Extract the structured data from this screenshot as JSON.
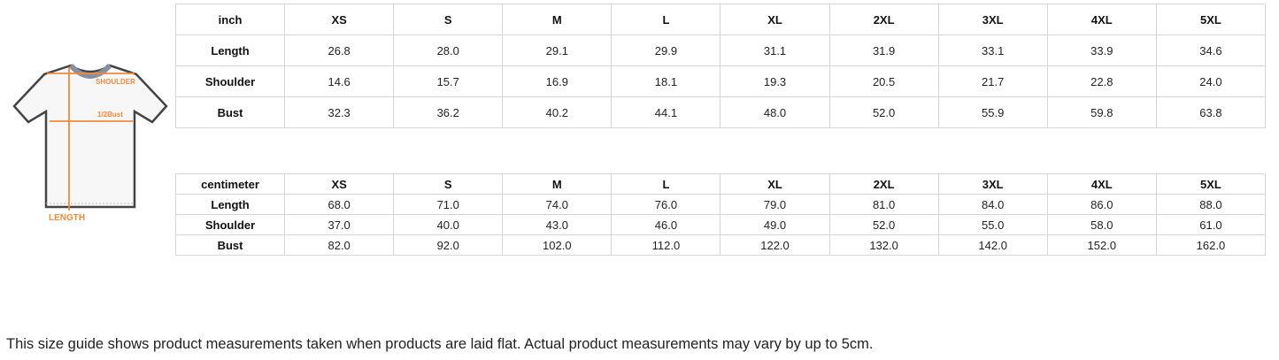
{
  "diagram": {
    "labels": [
      "SHOULDER",
      "1/2Bust",
      "LENGTH"
    ],
    "accent": "#f08a3c"
  },
  "inch_table": {
    "header": [
      "inch",
      "XS",
      "S",
      "M",
      "L",
      "XL",
      "2XL",
      "3XL",
      "4XL",
      "5XL"
    ],
    "rows": [
      [
        "Length",
        "26.8",
        "28.0",
        "29.1",
        "29.9",
        "31.1",
        "31.9",
        "33.1",
        "33.9",
        "34.6"
      ],
      [
        "Shoulder",
        "14.6",
        "15.7",
        "16.9",
        "18.1",
        "19.3",
        "20.5",
        "21.7",
        "22.8",
        "24.0"
      ],
      [
        "Bust",
        "32.3",
        "36.2",
        "40.2",
        "44.1",
        "48.0",
        "52.0",
        "55.9",
        "59.8",
        "63.8"
      ]
    ]
  },
  "cm_table": {
    "header": [
      "centimeter",
      "XS",
      "S",
      "M",
      "L",
      "XL",
      "2XL",
      "3XL",
      "4XL",
      "5XL"
    ],
    "rows": [
      [
        "Length",
        "68.0",
        "71.0",
        "74.0",
        "76.0",
        "79.0",
        "81.0",
        "84.0",
        "86.0",
        "88.0"
      ],
      [
        "Shoulder",
        "37.0",
        "40.0",
        "43.0",
        "46.0",
        "49.0",
        "52.0",
        "55.0",
        "58.0",
        "61.0"
      ],
      [
        "Bust",
        "82.0",
        "92.0",
        "102.0",
        "112.0",
        "122.0",
        "132.0",
        "142.0",
        "152.0",
        "162.0"
      ]
    ]
  },
  "note": "This size guide shows product measurements taken when products are laid flat. Actual product measurements may vary by up to 5cm."
}
